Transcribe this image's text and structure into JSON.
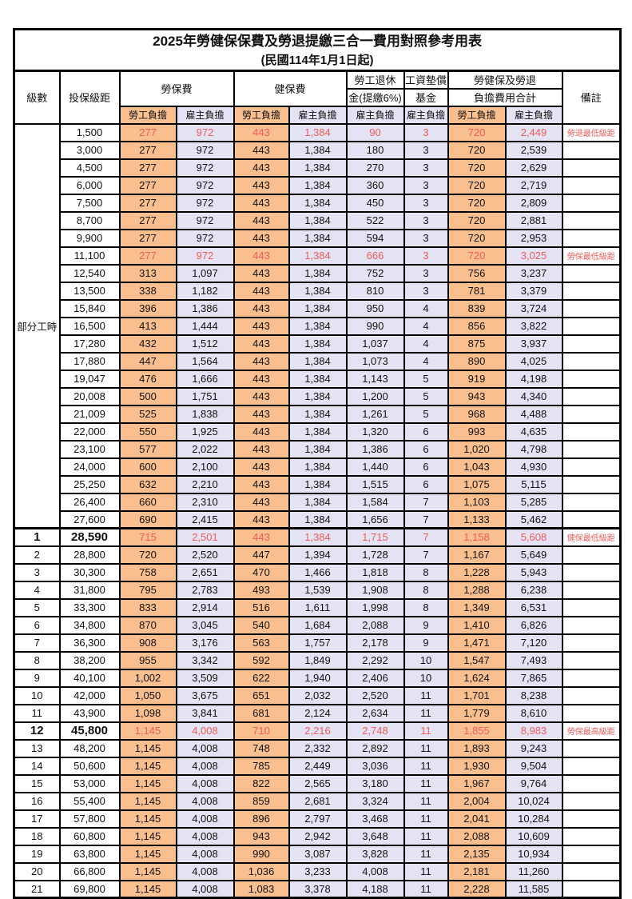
{
  "title": "2025年勞健保保費及勞退提繳三合一費用對照參考用表",
  "subtitle": "(民國114年1月1日起)",
  "header": {
    "level": "級數",
    "bracket": "投保級距",
    "labor_insurance": "勞保費",
    "health_insurance": "健保費",
    "pension_line1": "勞工退休",
    "pension_line2": "金(提繳6%)",
    "wage_fund_line1": "工資墊償",
    "wage_fund_line2": "基金",
    "total_line1": "勞健保及勞退",
    "total_line2": "負擔費用合計",
    "remark": "備註",
    "employee_share": "勞工負擔",
    "employer_share": "雇主負擔"
  },
  "colors": {
    "employee_fill": "#FABF8F",
    "employer_fill": "#E4E3F3",
    "highlight_text": "#F25B5B",
    "border": "#000000",
    "background": "#FFFFFF"
  },
  "part_time": {
    "label": "部分工時",
    "rowspan": 23
  },
  "rows": [
    {
      "level": "",
      "bracket": "1,500",
      "values": [
        "277",
        "972",
        "443",
        "1,384",
        "90",
        "3",
        "720",
        "2,449"
      ],
      "remark": "勞退最低級距",
      "highlight": true,
      "emph": false,
      "sep": false
    },
    {
      "level": "",
      "bracket": "3,000",
      "values": [
        "277",
        "972",
        "443",
        "1,384",
        "180",
        "3",
        "720",
        "2,539"
      ],
      "remark": "",
      "highlight": false,
      "emph": false,
      "sep": false
    },
    {
      "level": "",
      "bracket": "4,500",
      "values": [
        "277",
        "972",
        "443",
        "1,384",
        "270",
        "3",
        "720",
        "2,629"
      ],
      "remark": "",
      "highlight": false,
      "emph": false,
      "sep": false
    },
    {
      "level": "",
      "bracket": "6,000",
      "values": [
        "277",
        "972",
        "443",
        "1,384",
        "360",
        "3",
        "720",
        "2,719"
      ],
      "remark": "",
      "highlight": false,
      "emph": false,
      "sep": false
    },
    {
      "level": "",
      "bracket": "7,500",
      "values": [
        "277",
        "972",
        "443",
        "1,384",
        "450",
        "3",
        "720",
        "2,809"
      ],
      "remark": "",
      "highlight": false,
      "emph": false,
      "sep": false
    },
    {
      "level": "",
      "bracket": "8,700",
      "values": [
        "277",
        "972",
        "443",
        "1,384",
        "522",
        "3",
        "720",
        "2,881"
      ],
      "remark": "",
      "highlight": false,
      "emph": false,
      "sep": false
    },
    {
      "level": "",
      "bracket": "9,900",
      "values": [
        "277",
        "972",
        "443",
        "1,384",
        "594",
        "3",
        "720",
        "2,953"
      ],
      "remark": "",
      "highlight": false,
      "emph": false,
      "sep": false
    },
    {
      "level": "",
      "bracket": "11,100",
      "values": [
        "277",
        "972",
        "443",
        "1,384",
        "666",
        "3",
        "720",
        "3,025"
      ],
      "remark": "勞保最低級距",
      "highlight": true,
      "emph": false,
      "sep": false
    },
    {
      "level": "",
      "bracket": "12,540",
      "values": [
        "313",
        "1,097",
        "443",
        "1,384",
        "752",
        "3",
        "756",
        "3,237"
      ],
      "remark": "",
      "highlight": false,
      "emph": false,
      "sep": false
    },
    {
      "level": "",
      "bracket": "13,500",
      "values": [
        "338",
        "1,182",
        "443",
        "1,384",
        "810",
        "3",
        "781",
        "3,379"
      ],
      "remark": "",
      "highlight": false,
      "emph": false,
      "sep": false
    },
    {
      "level": "",
      "bracket": "15,840",
      "values": [
        "396",
        "1,386",
        "443",
        "1,384",
        "950",
        "4",
        "839",
        "3,724"
      ],
      "remark": "",
      "highlight": false,
      "emph": false,
      "sep": false
    },
    {
      "level": "",
      "bracket": "16,500",
      "values": [
        "413",
        "1,444",
        "443",
        "1,384",
        "990",
        "4",
        "856",
        "3,822"
      ],
      "remark": "",
      "highlight": false,
      "emph": false,
      "sep": false
    },
    {
      "level": "",
      "bracket": "17,280",
      "values": [
        "432",
        "1,512",
        "443",
        "1,384",
        "1,037",
        "4",
        "875",
        "3,937"
      ],
      "remark": "",
      "highlight": false,
      "emph": false,
      "sep": false
    },
    {
      "level": "",
      "bracket": "17,880",
      "values": [
        "447",
        "1,564",
        "443",
        "1,384",
        "1,073",
        "4",
        "890",
        "4,025"
      ],
      "remark": "",
      "highlight": false,
      "emph": false,
      "sep": false
    },
    {
      "level": "",
      "bracket": "19,047",
      "values": [
        "476",
        "1,666",
        "443",
        "1,384",
        "1,143",
        "5",
        "919",
        "4,198"
      ],
      "remark": "",
      "highlight": false,
      "emph": false,
      "sep": false
    },
    {
      "level": "",
      "bracket": "20,008",
      "values": [
        "500",
        "1,751",
        "443",
        "1,384",
        "1,200",
        "5",
        "943",
        "4,340"
      ],
      "remark": "",
      "highlight": false,
      "emph": false,
      "sep": false
    },
    {
      "level": "",
      "bracket": "21,009",
      "values": [
        "525",
        "1,838",
        "443",
        "1,384",
        "1,261",
        "5",
        "968",
        "4,488"
      ],
      "remark": "",
      "highlight": false,
      "emph": false,
      "sep": false
    },
    {
      "level": "",
      "bracket": "22,000",
      "values": [
        "550",
        "1,925",
        "443",
        "1,384",
        "1,320",
        "6",
        "993",
        "4,635"
      ],
      "remark": "",
      "highlight": false,
      "emph": false,
      "sep": false
    },
    {
      "level": "",
      "bracket": "23,100",
      "values": [
        "577",
        "2,022",
        "443",
        "1,384",
        "1,386",
        "6",
        "1,020",
        "4,798"
      ],
      "remark": "",
      "highlight": false,
      "emph": false,
      "sep": false
    },
    {
      "level": "",
      "bracket": "24,000",
      "values": [
        "600",
        "2,100",
        "443",
        "1,384",
        "1,440",
        "6",
        "1,043",
        "4,930"
      ],
      "remark": "",
      "highlight": false,
      "emph": false,
      "sep": false
    },
    {
      "level": "",
      "bracket": "25,250",
      "values": [
        "632",
        "2,210",
        "443",
        "1,384",
        "1,515",
        "6",
        "1,075",
        "5,115"
      ],
      "remark": "",
      "highlight": false,
      "emph": false,
      "sep": false
    },
    {
      "level": "",
      "bracket": "26,400",
      "values": [
        "660",
        "2,310",
        "443",
        "1,384",
        "1,584",
        "7",
        "1,103",
        "5,285"
      ],
      "remark": "",
      "highlight": false,
      "emph": false,
      "sep": false
    },
    {
      "level": "",
      "bracket": "27,600",
      "values": [
        "690",
        "2,415",
        "443",
        "1,384",
        "1,656",
        "7",
        "1,133",
        "5,462"
      ],
      "remark": "",
      "highlight": false,
      "emph": false,
      "sep": false
    },
    {
      "level": "1",
      "bracket": "28,590",
      "values": [
        "715",
        "2,501",
        "443",
        "1,384",
        "1,715",
        "7",
        "1,158",
        "5,608"
      ],
      "remark": "健保最低級距",
      "highlight": true,
      "emph": true,
      "sep": true
    },
    {
      "level": "2",
      "bracket": "28,800",
      "values": [
        "720",
        "2,520",
        "447",
        "1,394",
        "1,728",
        "7",
        "1,167",
        "5,649"
      ],
      "remark": "",
      "highlight": false,
      "emph": false,
      "sep": false
    },
    {
      "level": "3",
      "bracket": "30,300",
      "values": [
        "758",
        "2,651",
        "470",
        "1,466",
        "1,818",
        "8",
        "1,228",
        "5,943"
      ],
      "remark": "",
      "highlight": false,
      "emph": false,
      "sep": false
    },
    {
      "level": "4",
      "bracket": "31,800",
      "values": [
        "795",
        "2,783",
        "493",
        "1,539",
        "1,908",
        "8",
        "1,288",
        "6,238"
      ],
      "remark": "",
      "highlight": false,
      "emph": false,
      "sep": false
    },
    {
      "level": "5",
      "bracket": "33,300",
      "values": [
        "833",
        "2,914",
        "516",
        "1,611",
        "1,998",
        "8",
        "1,349",
        "6,531"
      ],
      "remark": "",
      "highlight": false,
      "emph": false,
      "sep": false
    },
    {
      "level": "6",
      "bracket": "34,800",
      "values": [
        "870",
        "3,045",
        "540",
        "1,684",
        "2,088",
        "9",
        "1,410",
        "6,826"
      ],
      "remark": "",
      "highlight": false,
      "emph": false,
      "sep": false
    },
    {
      "level": "7",
      "bracket": "36,300",
      "values": [
        "908",
        "3,176",
        "563",
        "1,757",
        "2,178",
        "9",
        "1,471",
        "7,120"
      ],
      "remark": "",
      "highlight": false,
      "emph": false,
      "sep": false
    },
    {
      "level": "8",
      "bracket": "38,200",
      "values": [
        "955",
        "3,342",
        "592",
        "1,849",
        "2,292",
        "10",
        "1,547",
        "7,493"
      ],
      "remark": "",
      "highlight": false,
      "emph": false,
      "sep": false
    },
    {
      "level": "9",
      "bracket": "40,100",
      "values": [
        "1,002",
        "3,509",
        "622",
        "1,940",
        "2,406",
        "10",
        "1,624",
        "7,865"
      ],
      "remark": "",
      "highlight": false,
      "emph": false,
      "sep": false
    },
    {
      "level": "10",
      "bracket": "42,000",
      "values": [
        "1,050",
        "3,675",
        "651",
        "2,032",
        "2,520",
        "11",
        "1,701",
        "8,238"
      ],
      "remark": "",
      "highlight": false,
      "emph": false,
      "sep": false
    },
    {
      "level": "11",
      "bracket": "43,900",
      "values": [
        "1,098",
        "3,841",
        "681",
        "2,124",
        "2,634",
        "11",
        "1,779",
        "8,610"
      ],
      "remark": "",
      "highlight": false,
      "emph": false,
      "sep": false
    },
    {
      "level": "12",
      "bracket": "45,800",
      "values": [
        "1,145",
        "4,008",
        "710",
        "2,216",
        "2,748",
        "11",
        "1,855",
        "8,983"
      ],
      "remark": "勞保最高級距",
      "highlight": true,
      "emph": true,
      "sep": false
    },
    {
      "level": "13",
      "bracket": "48,200",
      "values": [
        "1,145",
        "4,008",
        "748",
        "2,332",
        "2,892",
        "11",
        "1,893",
        "9,243"
      ],
      "remark": "",
      "highlight": false,
      "emph": false,
      "sep": false
    },
    {
      "level": "14",
      "bracket": "50,600",
      "values": [
        "1,145",
        "4,008",
        "785",
        "2,449",
        "3,036",
        "11",
        "1,930",
        "9,504"
      ],
      "remark": "",
      "highlight": false,
      "emph": false,
      "sep": false
    },
    {
      "level": "15",
      "bracket": "53,000",
      "values": [
        "1,145",
        "4,008",
        "822",
        "2,565",
        "3,180",
        "11",
        "1,967",
        "9,764"
      ],
      "remark": "",
      "highlight": false,
      "emph": false,
      "sep": false
    },
    {
      "level": "16",
      "bracket": "55,400",
      "values": [
        "1,145",
        "4,008",
        "859",
        "2,681",
        "3,324",
        "11",
        "2,004",
        "10,024"
      ],
      "remark": "",
      "highlight": false,
      "emph": false,
      "sep": false
    },
    {
      "level": "17",
      "bracket": "57,800",
      "values": [
        "1,145",
        "4,008",
        "896",
        "2,797",
        "3,468",
        "11",
        "2,041",
        "10,284"
      ],
      "remark": "",
      "highlight": false,
      "emph": false,
      "sep": false
    },
    {
      "level": "18",
      "bracket": "60,800",
      "values": [
        "1,145",
        "4,008",
        "943",
        "2,942",
        "3,648",
        "11",
        "2,088",
        "10,609"
      ],
      "remark": "",
      "highlight": false,
      "emph": false,
      "sep": false
    },
    {
      "level": "19",
      "bracket": "63,800",
      "values": [
        "1,145",
        "4,008",
        "990",
        "3,087",
        "3,828",
        "11",
        "2,135",
        "10,934"
      ],
      "remark": "",
      "highlight": false,
      "emph": false,
      "sep": false
    },
    {
      "level": "20",
      "bracket": "66,800",
      "values": [
        "1,145",
        "4,008",
        "1,036",
        "3,233",
        "4,008",
        "11",
        "2,181",
        "11,260"
      ],
      "remark": "",
      "highlight": false,
      "emph": false,
      "sep": false
    },
    {
      "level": "21",
      "bracket": "69,800",
      "values": [
        "1,145",
        "4,008",
        "1,083",
        "3,378",
        "4,188",
        "11",
        "2,228",
        "11,585"
      ],
      "remark": "",
      "highlight": false,
      "emph": false,
      "sep": false
    }
  ]
}
